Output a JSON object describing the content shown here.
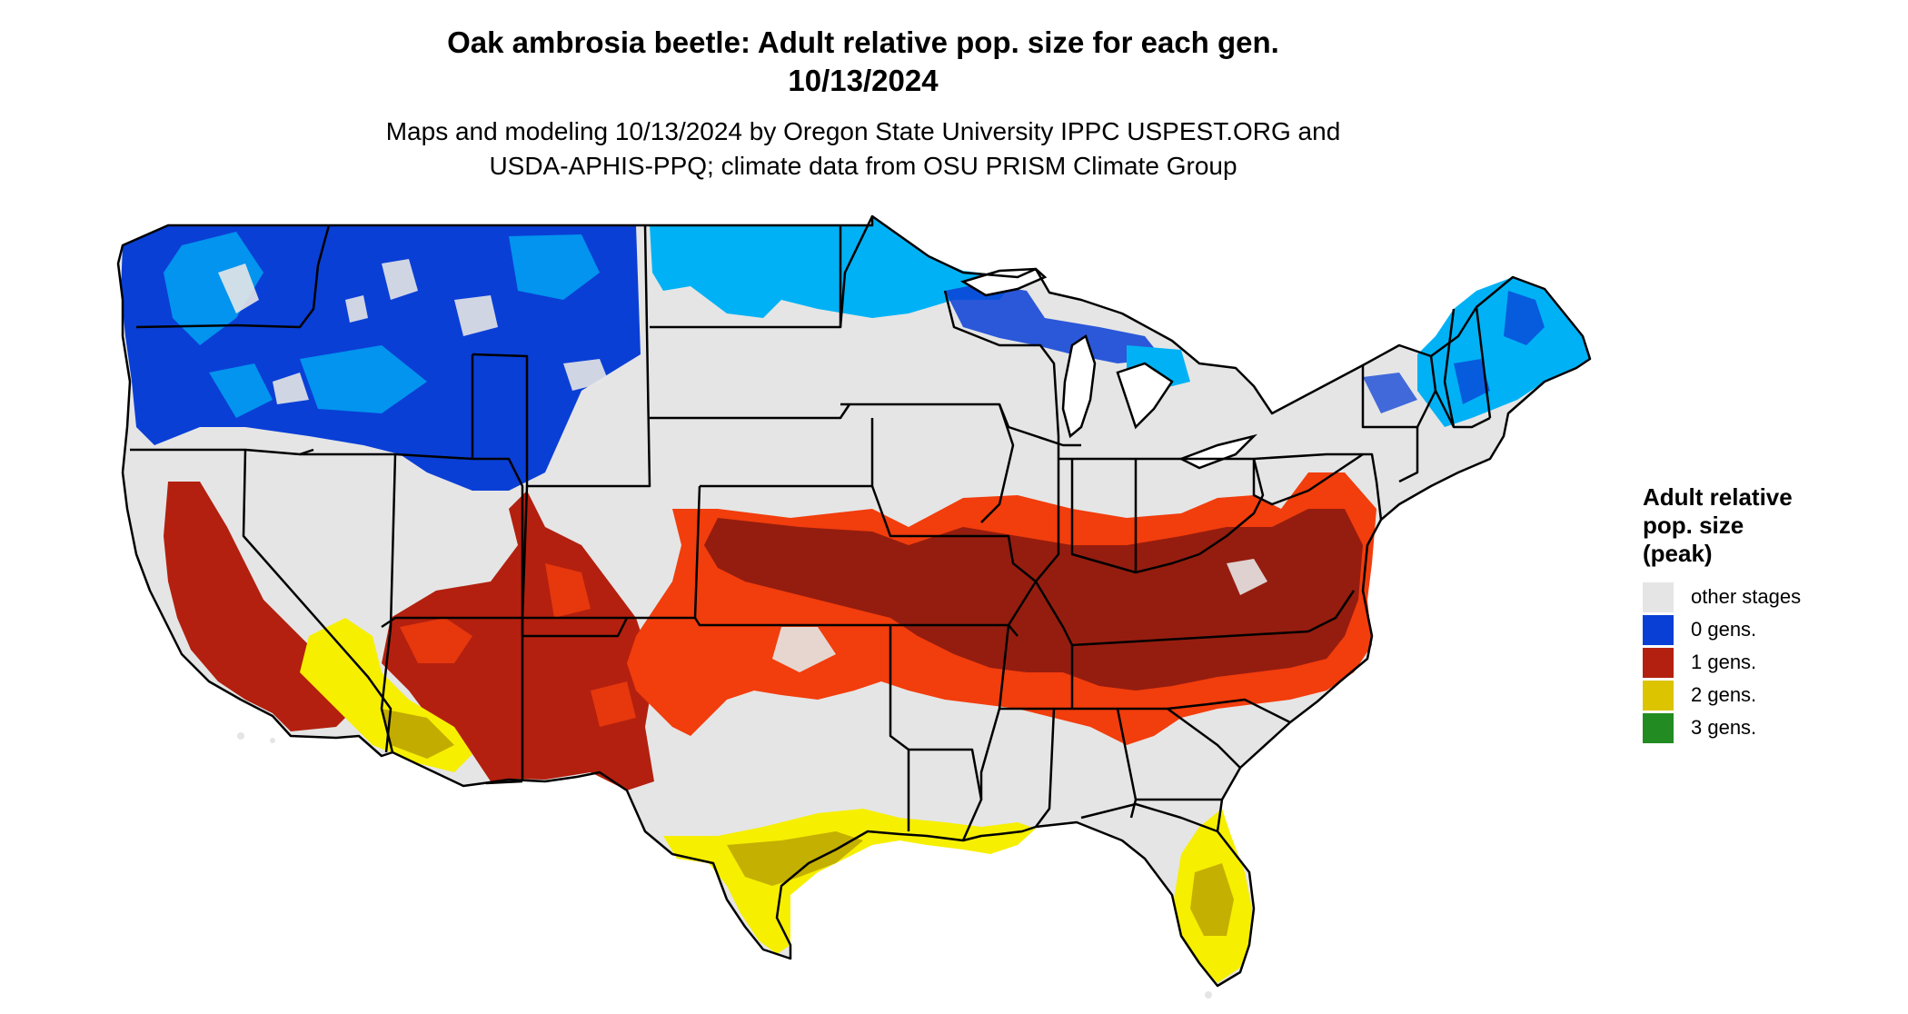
{
  "header": {
    "title_line1": "Oak ambrosia beetle: Adult relative pop. size for each gen.",
    "title_line2": "10/13/2024",
    "subtitle_line1": "Maps and modeling 10/13/2024 by Oregon State University IPPC USPEST.ORG and",
    "subtitle_line2": "USDA-APHIS-PPQ; climate data from OSU PRISM Climate Group"
  },
  "legend": {
    "title_line1": "Adult relative",
    "title_line2": "pop. size",
    "title_line3": "(peak)",
    "items": [
      {
        "label": "other stages",
        "color": "#e5e5e5"
      },
      {
        "label": "0 gens.",
        "color": "#0a3fd6"
      },
      {
        "label": "1 gens.",
        "color": "#b3200f"
      },
      {
        "label": "2 gens.",
        "color": "#dcc400"
      },
      {
        "label": "3 gens.",
        "color": "#228b22"
      }
    ]
  },
  "map": {
    "colors": {
      "background": "#e5e5e5",
      "zero_gens_dark": "#0a3fd6",
      "zero_gens_light": "#00b2f5",
      "one_gen_dark": "#8b1a10",
      "one_gen_light": "#f23d0c",
      "two_gens_dark": "#b8a000",
      "two_gens_light": "#f6ef00",
      "borders": "#000000"
    }
  }
}
